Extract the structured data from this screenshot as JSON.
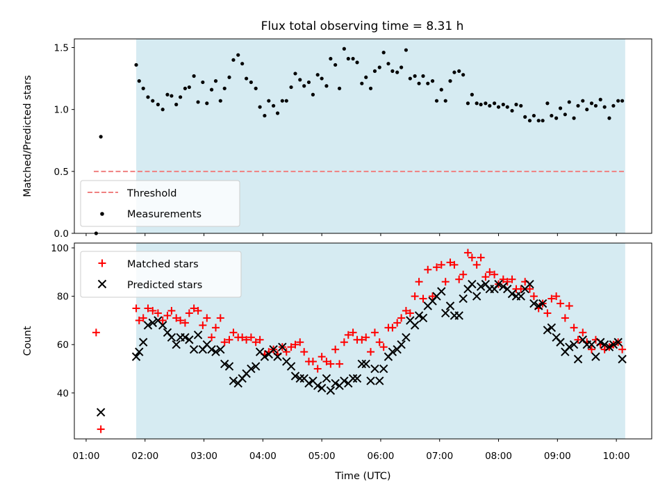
{
  "chart_data": {
    "title": "Flux total observing time = 8.31 h",
    "xlabel": "Time (UTC)",
    "x_unit": "hours UTC",
    "xlim": [
      0.8,
      10.6
    ],
    "xtick_labels": [
      {
        "x": 1,
        "label": "01:00"
      },
      {
        "x": 2,
        "label": "02:00"
      },
      {
        "x": 3,
        "label": "03:00"
      },
      {
        "x": 4,
        "label": "04:00"
      },
      {
        "x": 5,
        "label": "05:00"
      },
      {
        "x": 6,
        "label": "06:00"
      },
      {
        "x": 7,
        "label": "07:00"
      },
      {
        "x": 8,
        "label": "08:00"
      },
      {
        "x": 9,
        "label": "09:00"
      },
      {
        "x": 10,
        "label": "10:00"
      }
    ],
    "shaded_interval": {
      "x": [
        1.85,
        10.15
      ],
      "color": "#add8e6"
    },
    "panels": [
      {
        "id": "ratio",
        "type": "scatter",
        "ylabel": "Matched/Predicted stars",
        "ylim": [
          0,
          1.57
        ],
        "yticks": [
          0,
          0.5,
          1.0,
          1.5
        ],
        "ytick_labels": [
          "0.0",
          "0.5",
          "1.0",
          "1.5"
        ],
        "legend": {
          "position": "lower-left",
          "entries": [
            "Threshold",
            "Measurements"
          ]
        },
        "threshold": {
          "name": "Threshold",
          "y": 0.5,
          "x": [
            1.13,
            10.15
          ],
          "color": "#f08080",
          "style": "dashed"
        },
        "series": [
          {
            "name": "Measurements",
            "color": "#000000",
            "marker": "dot",
            "x": [
              1.17,
              1.25,
              1.85,
              1.9,
              1.97,
              2.05,
              2.13,
              2.22,
              2.3,
              2.38,
              2.45,
              2.53,
              2.6,
              2.68,
              2.75,
              2.83,
              2.9,
              2.98,
              3.05,
              3.13,
              3.2,
              3.28,
              3.35,
              3.43,
              3.5,
              3.58,
              3.65,
              3.72,
              3.8,
              3.88,
              3.95,
              4.03,
              4.1,
              4.18,
              4.25,
              4.33,
              4.4,
              4.48,
              4.55,
              4.63,
              4.7,
              4.78,
              4.85,
              4.93,
              5.0,
              5.08,
              5.15,
              5.23,
              5.3,
              5.38,
              5.45,
              5.53,
              5.6,
              5.68,
              5.75,
              5.83,
              5.9,
              5.98,
              6.05,
              6.13,
              6.2,
              6.28,
              6.35,
              6.43,
              6.5,
              6.58,
              6.65,
              6.72,
              6.8,
              6.88,
              6.95,
              7.03,
              7.1,
              7.18,
              7.25,
              7.33,
              7.4,
              7.48,
              7.55,
              7.63,
              7.7,
              7.78,
              7.85,
              7.93,
              8.0,
              8.08,
              8.15,
              8.23,
              8.3,
              8.38,
              8.45,
              8.53,
              8.6,
              8.68,
              8.75,
              8.83,
              8.9,
              8.98,
              9.05,
              9.13,
              9.2,
              9.28,
              9.35,
              9.43,
              9.5,
              9.58,
              9.65,
              9.73,
              9.8,
              9.88,
              9.95,
              10.03,
              10.1
            ],
            "values": [
              0.0,
              0.78,
              1.36,
              1.23,
              1.17,
              1.1,
              1.07,
              1.04,
              1.0,
              1.12,
              1.11,
              1.04,
              1.1,
              1.17,
              1.18,
              1.27,
              1.06,
              1.22,
              1.05,
              1.16,
              1.23,
              1.07,
              1.17,
              1.26,
              1.4,
              1.44,
              1.37,
              1.25,
              1.22,
              1.17,
              1.02,
              0.95,
              1.07,
              1.03,
              0.97,
              1.07,
              1.07,
              1.18,
              1.29,
              1.24,
              1.19,
              1.22,
              1.12,
              1.28,
              1.25,
              1.19,
              1.41,
              1.36,
              1.17,
              1.49,
              1.41,
              1.41,
              1.38,
              1.21,
              1.26,
              1.17,
              1.31,
              1.34,
              1.46,
              1.37,
              1.31,
              1.3,
              1.34,
              1.48,
              1.25,
              1.27,
              1.21,
              1.27,
              1.21,
              1.23,
              1.07,
              1.16,
              1.07,
              1.23,
              1.3,
              1.31,
              1.28,
              1.05,
              1.12,
              1.05,
              1.04,
              1.05,
              1.03,
              1.05,
              1.02,
              1.04,
              1.02,
              0.99,
              1.04,
              1.03,
              0.94,
              0.91,
              0.95,
              0.91,
              0.91,
              1.05,
              0.95,
              0.93,
              1.01,
              0.96,
              1.06,
              0.93,
              1.03,
              1.07,
              1.0,
              1.05,
              1.03,
              1.08,
              1.02,
              0.93,
              1.03,
              1.07,
              1.07
            ]
          }
        ]
      },
      {
        "id": "counts",
        "type": "scatter",
        "ylabel": "Count",
        "ylim": [
          21,
          102
        ],
        "yticks": [
          40,
          60,
          80,
          100
        ],
        "ytick_labels": [
          "40",
          "60",
          "80",
          "100"
        ],
        "legend": {
          "position": "upper-left",
          "entries": [
            "Matched stars",
            "Predicted stars"
          ]
        },
        "series": [
          {
            "name": "Matched stars",
            "color": "#ff0000",
            "marker": "plus",
            "x": [
              1.17,
              1.25,
              1.85,
              1.9,
              1.97,
              2.05,
              2.13,
              2.22,
              2.3,
              2.38,
              2.45,
              2.53,
              2.6,
              2.68,
              2.75,
              2.83,
              2.9,
              2.98,
              3.05,
              3.13,
              3.2,
              3.28,
              3.35,
              3.43,
              3.5,
              3.58,
              3.65,
              3.72,
              3.8,
              3.88,
              3.95,
              4.03,
              4.1,
              4.18,
              4.25,
              4.33,
              4.4,
              4.48,
              4.55,
              4.63,
              4.7,
              4.78,
              4.85,
              4.93,
              5.0,
              5.08,
              5.15,
              5.23,
              5.3,
              5.38,
              5.45,
              5.53,
              5.6,
              5.68,
              5.75,
              5.83,
              5.9,
              5.98,
              6.05,
              6.13,
              6.2,
              6.28,
              6.35,
              6.43,
              6.5,
              6.58,
              6.65,
              6.72,
              6.8,
              6.88,
              6.95,
              7.03,
              7.1,
              7.18,
              7.25,
              7.33,
              7.4,
              7.48,
              7.55,
              7.63,
              7.7,
              7.78,
              7.85,
              7.93,
              8.0,
              8.08,
              8.15,
              8.23,
              8.3,
              8.38,
              8.45,
              8.53,
              8.6,
              8.68,
              8.75,
              8.83,
              8.9,
              8.98,
              9.05,
              9.13,
              9.2,
              9.28,
              9.35,
              9.43,
              9.5,
              9.58,
              9.65,
              9.73,
              9.8,
              9.88,
              9.95,
              10.03,
              10.1
            ],
            "values": [
              65,
              25,
              75,
              70,
              71,
              75,
              74,
              73,
              70,
              72,
              74,
              71,
              70,
              69,
              73,
              75,
              74,
              68,
              71,
              63,
              67,
              71,
              61,
              62,
              65,
              63,
              63,
              62,
              63,
              61,
              62,
              56,
              57,
              58,
              56,
              59,
              57,
              59,
              60,
              61,
              57,
              53,
              53,
              50,
              55,
              53,
              52,
              58,
              52,
              61,
              64,
              65,
              62,
              62,
              63,
              57,
              65,
              61,
              59,
              67,
              67,
              69,
              71,
              74,
              73,
              80,
              86,
              79,
              91,
              80,
              92,
              93,
              86,
              94,
              93,
              87,
              89,
              98,
              96,
              93,
              96,
              88,
              90,
              89,
              85,
              87,
              86,
              87,
              83,
              83,
              86,
              83,
              80,
              75,
              77,
              73,
              79,
              80,
              77,
              71,
              76,
              67,
              62,
              65,
              61,
              58,
              62,
              60,
              58,
              59,
              60,
              61,
              58
            ]
          },
          {
            "name": "Predicted stars",
            "color": "#000000",
            "marker": "x",
            "x": [
              1.17,
              1.25,
              1.85,
              1.9,
              1.97,
              2.05,
              2.13,
              2.22,
              2.3,
              2.38,
              2.45,
              2.53,
              2.6,
              2.68,
              2.75,
              2.83,
              2.9,
              2.98,
              3.05,
              3.13,
              3.2,
              3.28,
              3.35,
              3.43,
              3.5,
              3.58,
              3.65,
              3.72,
              3.8,
              3.88,
              3.95,
              4.03,
              4.1,
              4.18,
              4.25,
              4.33,
              4.4,
              4.48,
              4.55,
              4.63,
              4.7,
              4.78,
              4.85,
              4.93,
              5.0,
              5.08,
              5.15,
              5.23,
              5.3,
              5.38,
              5.45,
              5.53,
              5.6,
              5.68,
              5.75,
              5.83,
              5.9,
              5.98,
              6.05,
              6.13,
              6.2,
              6.28,
              6.35,
              6.43,
              6.5,
              6.58,
              6.65,
              6.72,
              6.8,
              6.88,
              6.95,
              7.03,
              7.1,
              7.18,
              7.25,
              7.33,
              7.4,
              7.48,
              7.55,
              7.63,
              7.7,
              7.78,
              7.85,
              7.93,
              8.0,
              8.08,
              8.15,
              8.23,
              8.3,
              8.38,
              8.45,
              8.53,
              8.6,
              8.68,
              8.75,
              8.83,
              8.9,
              8.98,
              9.05,
              9.13,
              9.2,
              9.28,
              9.35,
              9.43,
              9.5,
              9.58,
              9.65,
              9.73,
              9.8,
              9.88,
              9.95,
              10.03,
              10.1
            ],
            "values": [
              null,
              32,
              55,
              57,
              61,
              68,
              69,
              70,
              68,
              65,
              63,
              60,
              63,
              63,
              62,
              58,
              64,
              58,
              60,
              58,
              57,
              58,
              52,
              51,
              45,
              44,
              46,
              48,
              50,
              51,
              57,
              55,
              56,
              58,
              55,
              59,
              53,
              51,
              47,
              46,
              46,
              44,
              45,
              43,
              42,
              46,
              41,
              44,
              43,
              45,
              44,
              46,
              46,
              52,
              52,
              45,
              50,
              45,
              50,
              55,
              57,
              58,
              60,
              63,
              70,
              68,
              72,
              71,
              76,
              78,
              80,
              82,
              73,
              76,
              72,
              72,
              79,
              83,
              85,
              80,
              84,
              85,
              83,
              83,
              85,
              84,
              83,
              81,
              80,
              80,
              83,
              85,
              77,
              76,
              77,
              66,
              67,
              63,
              61,
              57,
              59,
              60,
              54,
              62,
              60,
              60,
              55,
              61,
              60,
              59,
              60,
              61,
              54
            ]
          }
        ]
      }
    ]
  }
}
